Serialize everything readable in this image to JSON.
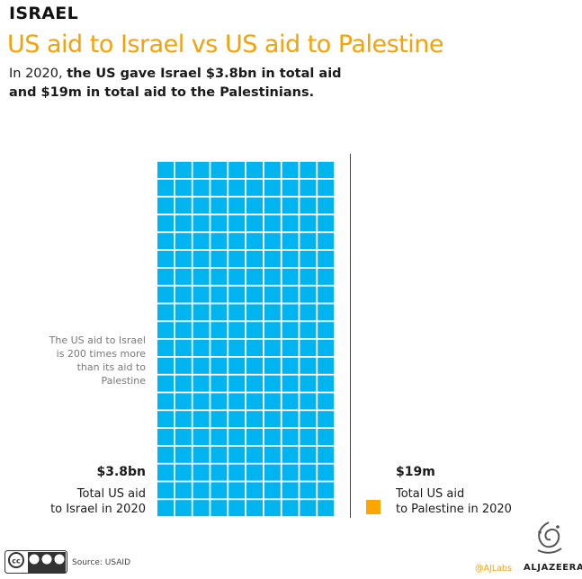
{
  "header": {
    "kicker": "ISRAEL",
    "title": "US aid to Israel vs US aid to Palestine",
    "subtitle_prefix": "In 2020, ",
    "subtitle_bold_1": "the US gave Israel $3.8bn in total aid",
    "subtitle_bold_2": "and $19m in total aid to the Palestinians."
  },
  "annotation": {
    "line1": "The US aid to Israel",
    "line2": "is 200 times more",
    "line3": "than its aid to",
    "line4": "Palestine"
  },
  "israel": {
    "value": "$3.8bn",
    "label_line1": "Total US aid",
    "label_line2": "to Israel in 2020",
    "color": "#00b4f0"
  },
  "palestine": {
    "value": "$19m",
    "label_line1": "Total US aid",
    "label_line2": "to Palestine in 2020",
    "color": "#ffa500"
  },
  "footer": {
    "source": "Source: USAID",
    "license_icon": "creative-commons-by-nc-sa-icon",
    "credit": "@AJLabs",
    "brand": "ALJAZEERA"
  },
  "chart_data": {
    "type": "waffle",
    "unit_value_millions": 19,
    "series": [
      {
        "name": "Israel",
        "value_usd": 3800000000,
        "squares": 200,
        "color": "#00b4f0"
      },
      {
        "name": "Palestine",
        "value_usd": 19000000,
        "squares": 1,
        "color": "#ffa500"
      }
    ],
    "israel_grid": {
      "columns": 10,
      "rows": 20
    }
  }
}
